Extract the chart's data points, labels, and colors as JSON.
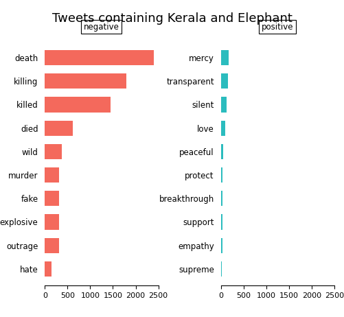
{
  "title": "Tweets containing Kerala and Elephant",
  "neg_labels": [
    "death",
    "killing",
    "killed",
    "died",
    "wild",
    "murder",
    "fake",
    "explosive",
    "outrage",
    "hate"
  ],
  "neg_values": [
    2400,
    1800,
    1450,
    620,
    380,
    310,
    310,
    310,
    310,
    150
  ],
  "pos_labels": [
    "mercy",
    "transparent",
    "silent",
    "love",
    "peaceful",
    "protect",
    "breakthrough",
    "support",
    "empathy",
    "supreme"
  ],
  "pos_values": [
    175,
    155,
    130,
    100,
    45,
    40,
    38,
    35,
    30,
    22
  ],
  "neg_color": "#F4695C",
  "pos_color": "#2BBCBE",
  "xlim": [
    0,
    2500
  ],
  "xticks": [
    0,
    500,
    1000,
    1500,
    2000,
    2500
  ],
  "bg_color": "#FFFFFF",
  "title_fontsize": 13,
  "label_fontsize": 8.5,
  "tick_fontsize": 8
}
